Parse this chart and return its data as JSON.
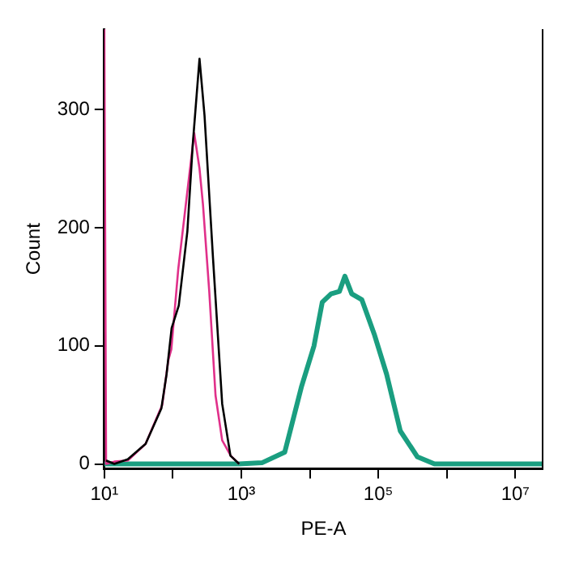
{
  "chart_data": {
    "type": "line",
    "xlabel": "PE-A",
    "ylabel": "Count",
    "log": "x",
    "grid": false,
    "legend": false,
    "marker": "none",
    "xlim": [
      10,
      25000000
    ],
    "xticks": [
      {
        "value": 10,
        "label": "10¹"
      },
      {
        "value": 100,
        "label": null
      },
      {
        "value": 1000,
        "label": "10³"
      },
      {
        "value": 10000,
        "label": null
      },
      {
        "value": 100000,
        "label": "10⁵"
      },
      {
        "value": 1000000,
        "label": null
      },
      {
        "value": 10000000,
        "label": "10⁷"
      }
    ],
    "ylim": [
      -4,
      368
    ],
    "yticks": [
      0,
      100,
      200,
      300
    ],
    "series": [
      {
        "color": "#000000",
        "x": [
          10.6,
          14,
          22,
          40,
          68,
          81,
          96,
          122,
          163,
          195,
          245,
          290,
          386,
          525,
          693,
          930
        ],
        "values": [
          3,
          0,
          4,
          17,
          47,
          76,
          115,
          134,
          197,
          270,
          343,
          295,
          174,
          51,
          7,
          0
        ]
      },
      {
        "color": "#e0308a",
        "x": [
          10,
          10.6,
          14,
          22,
          40,
          70,
          86,
          95,
          120,
          155,
          205,
          245,
          275,
          340,
          420,
          525,
          700,
          930
        ],
        "values": [
          368,
          0,
          2,
          3,
          17,
          50,
          88,
          97,
          165,
          220,
          280,
          250,
          220,
          146,
          58,
          20,
          7,
          0
        ]
      },
      {
        "color": "#1a9e80",
        "x": [
          10,
          930,
          2000,
          4300,
          7600,
          11500,
          15200,
          20400,
          27000,
          32500,
          40900,
          57500,
          87000,
          132000,
          209000,
          372000,
          660000,
          25000000
        ],
        "values": [
          0,
          0,
          1,
          10,
          66,
          100,
          137,
          144,
          146,
          159,
          144,
          139,
          110,
          76,
          28,
          6,
          0,
          0
        ]
      }
    ]
  }
}
